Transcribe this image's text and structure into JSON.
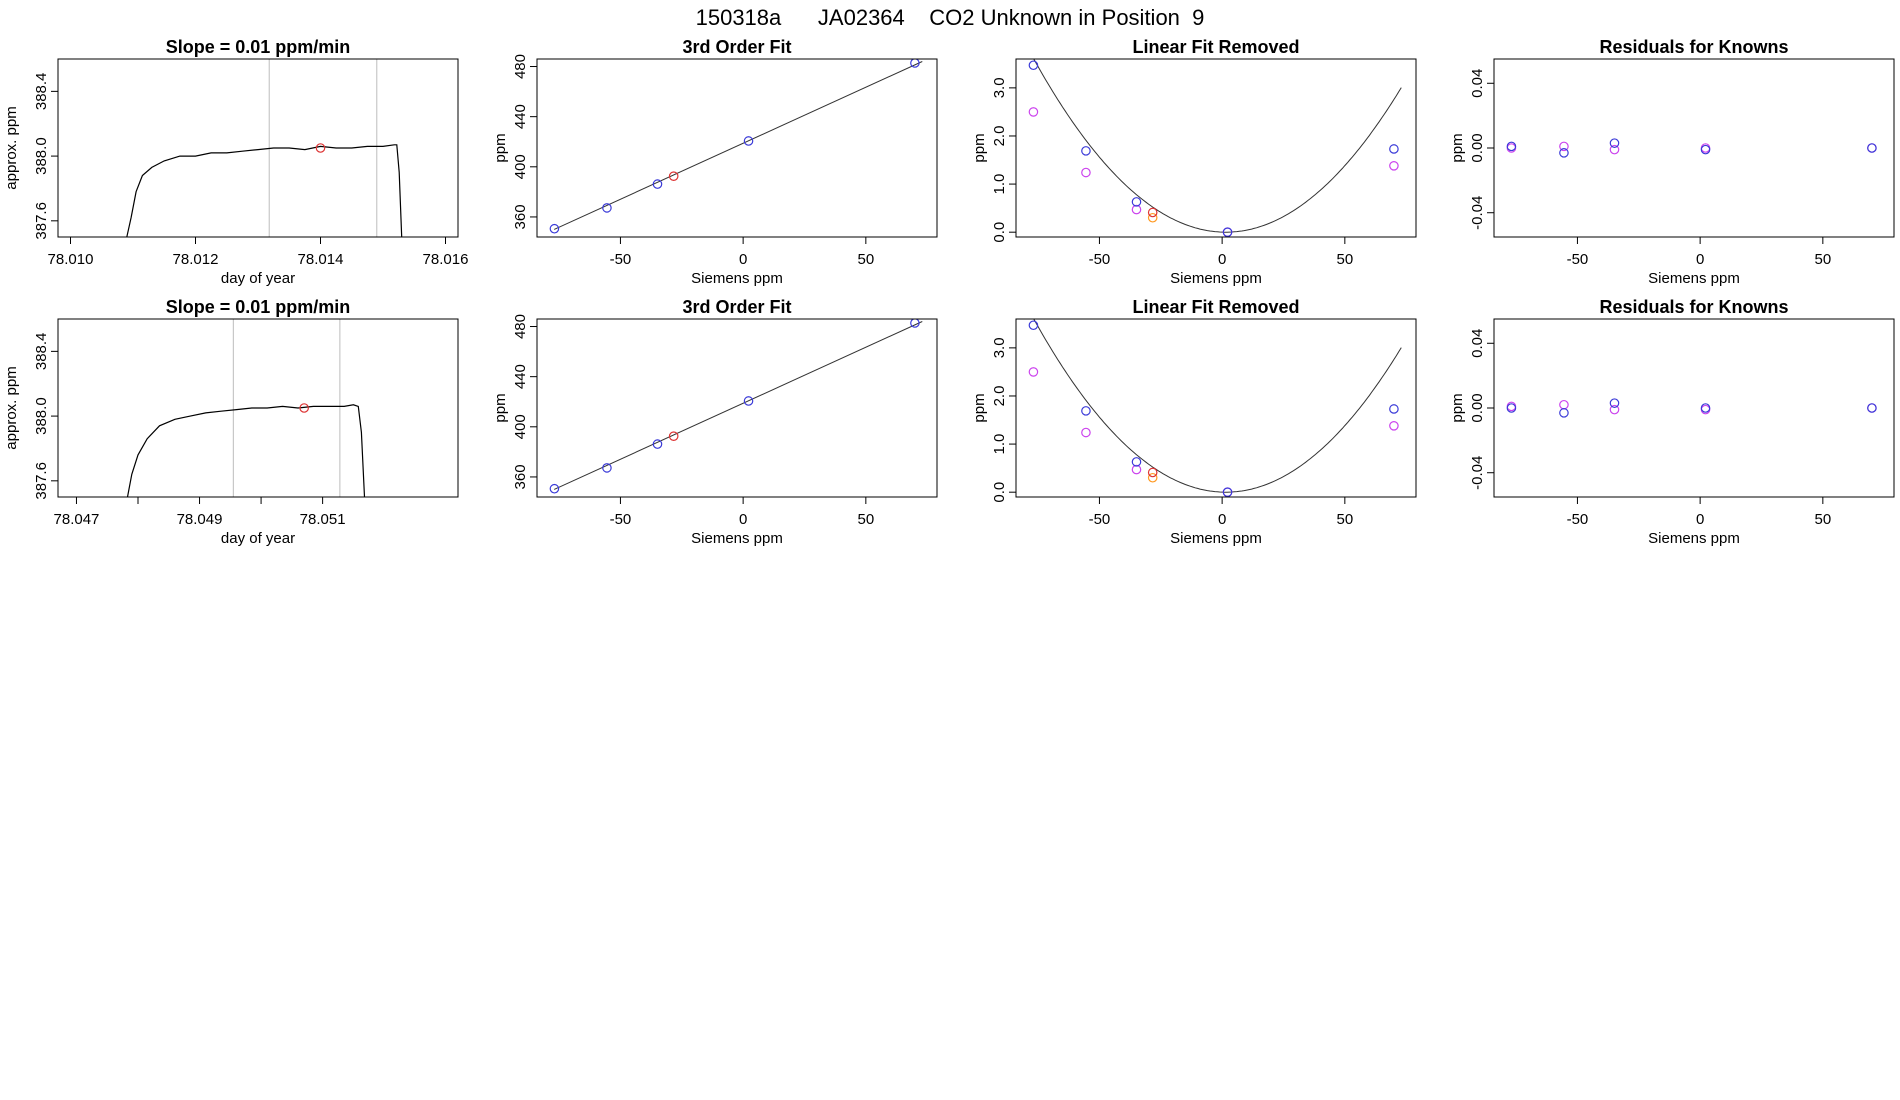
{
  "figure_title": "150318a      JA02364    CO2 Unknown in Position  9",
  "colors": {
    "trace": "#000000",
    "vline": "#c8c8c8",
    "known_main": "#3a3ad8",
    "known_alt": "#cc44ee",
    "unknown_main": "#dd3333",
    "unknown_alt": "#ff9922",
    "fit_line": "#333333"
  },
  "chart_data": [
    {
      "type": "line",
      "title": "Slope =  0.01  ppm/min",
      "xlabel": "day of year",
      "ylabel": "approx. ppm",
      "xlim": [
        78.0098,
        78.0162
      ],
      "ylim": [
        387.5,
        388.6
      ],
      "xticks": [
        "78.010",
        "78.012",
        "78.014",
        "78.016"
      ],
      "xtick_values": [
        78.01,
        78.012,
        78.014,
        78.016
      ],
      "yticks": [
        "387.6",
        "388.0",
        "388.4"
      ],
      "ytick_values": [
        387.6,
        388.0,
        388.4
      ],
      "vlines": [
        78.01318,
        78.0149
      ],
      "trace_x": [
        78.0109,
        78.01097,
        78.01105,
        78.01115,
        78.0113,
        78.0115,
        78.01175,
        78.012,
        78.01225,
        78.0125,
        78.01275,
        78.013,
        78.01325,
        78.0135,
        78.01375,
        78.014,
        78.01425,
        78.0145,
        78.01475,
        78.015,
        78.01518,
        78.01522,
        78.01526,
        78.0153
      ],
      "trace_y": [
        387.5,
        387.62,
        387.78,
        387.88,
        387.93,
        387.97,
        388.0,
        388.0,
        388.02,
        388.02,
        388.03,
        388.04,
        388.05,
        388.05,
        388.04,
        388.06,
        388.05,
        388.05,
        388.06,
        388.06,
        388.07,
        388.07,
        387.9,
        387.5
      ],
      "marker": {
        "x": 78.014,
        "y": 388.05
      }
    },
    {
      "type": "scatter",
      "title": "3rd Order Fit",
      "xlabel": "Siemens ppm",
      "ylabel": "ppm",
      "xlim": [
        -84,
        79
      ],
      "ylim": [
        344,
        486
      ],
      "xticks": [
        "-50",
        "0",
        "50"
      ],
      "xtick_values": [
        -50,
        0,
        50
      ],
      "yticks": [
        "360",
        "400",
        "440",
        "480"
      ],
      "ytick_values": [
        360,
        400,
        440,
        480
      ],
      "fit": [
        [
          -77,
          350
        ],
        [
          73,
          484
        ]
      ],
      "known": {
        "x": [
          -76.9,
          -55.5,
          -34.9,
          2.2,
          70.0
        ],
        "y": [
          350.6,
          367.2,
          386.2,
          420.6,
          482.8
        ]
      },
      "unknown": {
        "x": [
          -28.3
        ],
        "y": [
          392.5
        ]
      }
    },
    {
      "type": "scatter",
      "title": "Linear Fit Removed",
      "xlabel": "Siemens ppm",
      "ylabel": "ppm",
      "xlim": [
        -84,
        79
      ],
      "ylim": [
        -0.1,
        3.6
      ],
      "xticks": [
        "-50",
        "0",
        "50"
      ],
      "xtick_values": [
        -50,
        0,
        50
      ],
      "yticks": [
        "0.0",
        "1.0",
        "2.0",
        "3.0"
      ],
      "ytick_values": [
        0,
        1,
        2,
        3
      ],
      "curve_a": 0.000588,
      "curve_x0": 1.5,
      "curve_range": [
        -77,
        73
      ],
      "known_main": {
        "x": [
          -76.9,
          -55.5,
          -34.9,
          2.2,
          70.0
        ],
        "y": [
          3.47,
          1.69,
          0.63,
          0.0,
          1.73
        ]
      },
      "known_alt": {
        "x": [
          -76.9,
          -55.5,
          -34.9,
          2.2,
          70.0
        ],
        "y": [
          2.5,
          1.24,
          0.47,
          0.0,
          1.38
        ]
      },
      "unknown_main": {
        "x": [
          -28.3
        ],
        "y": [
          0.41
        ]
      },
      "unknown_alt": {
        "x": [
          -28.3
        ],
        "y": [
          0.3
        ]
      }
    },
    {
      "type": "scatter",
      "title": "Residuals for Knowns",
      "xlabel": "Siemens ppm",
      "ylabel": "ppm",
      "xlim": [
        -84,
        79
      ],
      "ylim": [
        -0.055,
        0.055
      ],
      "xticks": [
        "-50",
        "0",
        "50"
      ],
      "xtick_values": [
        -50,
        0,
        50
      ],
      "yticks": [
        "-0.04",
        "0.00",
        "0.04"
      ],
      "ytick_values": [
        -0.04,
        0.0,
        0.04
      ],
      "known_main": {
        "x": [
          -76.9,
          -55.5,
          -34.9,
          2.2,
          70.0
        ],
        "y": [
          0.001,
          -0.003,
          0.003,
          -0.001,
          0.0
        ]
      },
      "known_alt": {
        "x": [
          -76.9,
          -55.5,
          -34.9,
          2.2,
          70.0
        ],
        "y": [
          0.0,
          0.001,
          -0.001,
          0.0,
          0.0
        ]
      }
    },
    {
      "type": "line",
      "title": "Slope =  0.01  ppm/min",
      "xlabel": "day of year",
      "ylabel": "approx. ppm",
      "xlim": [
        78.0467,
        78.0532
      ],
      "ylim": [
        387.5,
        388.6
      ],
      "xticks": [
        "78.047",
        "78.049",
        "78.051"
      ],
      "xtick_values": [
        78.047,
        78.049,
        78.051
      ],
      "yticks": [
        "387.6",
        "388.0",
        "388.4"
      ],
      "ytick_values": [
        387.6,
        388.0,
        388.4
      ],
      "minor_xticks": [
        78.048,
        78.05
      ],
      "vlines": [
        78.04955,
        78.05128
      ],
      "trace_x": [
        78.04783,
        78.0479,
        78.048,
        78.04815,
        78.04835,
        78.0486,
        78.04885,
        78.0491,
        78.04935,
        78.0496,
        78.04985,
        78.0501,
        78.05035,
        78.0506,
        78.05085,
        78.0511,
        78.05135,
        78.0515,
        78.05158,
        78.05163,
        78.05168
      ],
      "trace_y": [
        387.5,
        387.64,
        387.76,
        387.86,
        387.94,
        387.98,
        388.0,
        388.02,
        388.03,
        388.04,
        388.05,
        388.05,
        388.06,
        388.05,
        388.06,
        388.06,
        388.06,
        388.07,
        388.06,
        387.9,
        387.5
      ],
      "marker": {
        "x": 78.0507,
        "y": 388.05
      }
    },
    {
      "type": "scatter",
      "title": "3rd Order Fit",
      "xlabel": "Siemens ppm",
      "ylabel": "ppm",
      "xlim": [
        -84,
        79
      ],
      "ylim": [
        344,
        486
      ],
      "xticks": [
        "-50",
        "0",
        "50"
      ],
      "xtick_values": [
        -50,
        0,
        50
      ],
      "yticks": [
        "360",
        "400",
        "440",
        "480"
      ],
      "ytick_values": [
        360,
        400,
        440,
        480
      ],
      "fit": [
        [
          -77,
          350
        ],
        [
          73,
          484
        ]
      ],
      "known": {
        "x": [
          -76.9,
          -55.5,
          -34.9,
          2.2,
          70.0
        ],
        "y": [
          350.6,
          367.2,
          386.2,
          420.6,
          482.8
        ]
      },
      "unknown": {
        "x": [
          -28.3
        ],
        "y": [
          392.5
        ]
      }
    },
    {
      "type": "scatter",
      "title": "Linear Fit Removed",
      "xlabel": "Siemens ppm",
      "ylabel": "ppm",
      "xlim": [
        -84,
        79
      ],
      "ylim": [
        -0.1,
        3.6
      ],
      "xticks": [
        "-50",
        "0",
        "50"
      ],
      "xtick_values": [
        -50,
        0,
        50
      ],
      "yticks": [
        "0.0",
        "1.0",
        "2.0",
        "3.0"
      ],
      "ytick_values": [
        0,
        1,
        2,
        3
      ],
      "curve_a": 0.000588,
      "curve_x0": 1.5,
      "curve_range": [
        -77,
        73
      ],
      "known_main": {
        "x": [
          -76.9,
          -55.5,
          -34.9,
          2.2,
          70.0
        ],
        "y": [
          3.47,
          1.69,
          0.63,
          0.0,
          1.73
        ]
      },
      "known_alt": {
        "x": [
          -76.9,
          -55.5,
          -34.9,
          2.2,
          70.0
        ],
        "y": [
          2.5,
          1.24,
          0.47,
          0.0,
          1.38
        ]
      },
      "unknown_main": {
        "x": [
          -28.3
        ],
        "y": [
          0.41
        ]
      },
      "unknown_alt": {
        "x": [
          -28.3
        ],
        "y": [
          0.3
        ]
      }
    },
    {
      "type": "scatter",
      "title": "Residuals for Knowns",
      "xlabel": "Siemens ppm",
      "ylabel": "ppm",
      "xlim": [
        -84,
        79
      ],
      "ylim": [
        -0.055,
        0.055
      ],
      "xticks": [
        "-50",
        "0",
        "50"
      ],
      "xtick_values": [
        -50,
        0,
        50
      ],
      "yticks": [
        "-0.04",
        "0.00",
        "0.04"
      ],
      "ytick_values": [
        -0.04,
        0.0,
        0.04
      ],
      "known_main": {
        "x": [
          -76.9,
          -55.5,
          -34.9,
          2.2,
          70.0
        ],
        "y": [
          0.0,
          -0.003,
          0.003,
          0.0,
          0.0
        ]
      },
      "known_alt": {
        "x": [
          -76.9,
          -55.5,
          -34.9,
          2.2,
          70.0
        ],
        "y": [
          0.001,
          0.002,
          -0.001,
          -0.001,
          0.0
        ]
      }
    }
  ]
}
